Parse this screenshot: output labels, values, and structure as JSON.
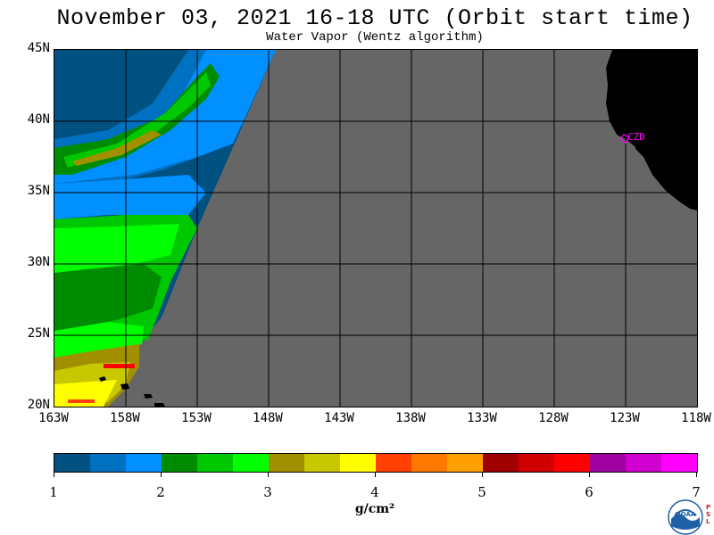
{
  "title": "November 03, 2021  16-18 UTC  (Orbit start time)",
  "subtitle": "Water Vapor (Wentz algorithm)",
  "map": {
    "lat_labels": [
      "45N",
      "40N",
      "35N",
      "30N",
      "25N",
      "20N"
    ],
    "lat_values": [
      45,
      40,
      35,
      30,
      25,
      20
    ],
    "lon_labels": [
      "163W",
      "158W",
      "153W",
      "148W",
      "143W",
      "138W",
      "133W",
      "128W",
      "123W",
      "118W"
    ],
    "lon_values": [
      -163,
      -158,
      -153,
      -148,
      -143,
      -138,
      -133,
      -128,
      -123,
      -118
    ],
    "lon_range": [
      -163,
      -118
    ],
    "lat_range": [
      20,
      45
    ],
    "station_label": "CZD",
    "colors": {
      "no_data": "#666666",
      "land": "#000000",
      "station": "#ff00ff"
    }
  },
  "colorbar": {
    "colors": [
      "#005080",
      "#0070c0",
      "#0090ff",
      "#008c00",
      "#00c800",
      "#00ff00",
      "#a09000",
      "#c8c800",
      "#ffff00",
      "#ff4000",
      "#ff7800",
      "#ffa000",
      "#a00000",
      "#d00000",
      "#ff0000",
      "#a000a0",
      "#d000d0",
      "#ff00ff"
    ],
    "tick_labels": [
      "1",
      "2",
      "3",
      "4",
      "5",
      "6",
      "7"
    ],
    "tick_values": [
      1,
      2,
      3,
      4,
      5,
      6,
      7
    ],
    "units": "g/cm²"
  },
  "logo": {
    "name": "noaa-logo",
    "text": "NOAA",
    "side_text": "PSL"
  }
}
